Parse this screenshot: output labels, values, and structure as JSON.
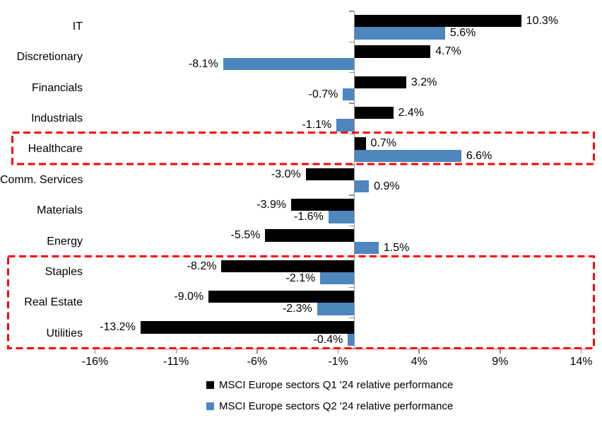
{
  "chart_data": {
    "type": "bar",
    "orientation": "horizontal",
    "title": "",
    "categories": [
      "IT",
      "Discretionary",
      "Financials",
      "Industrials",
      "Healthcare",
      "Comm. Services",
      "Materials",
      "Energy",
      "Staples",
      "Real Estate",
      "Utilities"
    ],
    "series": [
      {
        "name": "MSCI Europe sectors Q1 '24 relative performance",
        "color": "#000000",
        "values": [
          10.3,
          4.7,
          3.2,
          2.4,
          0.7,
          -3.0,
          -3.9,
          -5.5,
          -8.2,
          -9.0,
          -13.2
        ],
        "labels": [
          "10.3%",
          "4.7%",
          "3.2%",
          "2.4%",
          "0.7%",
          "-3.0%",
          "-3.9%",
          "-5.5%",
          "-8.2%",
          "-9.0%",
          "-13.2%"
        ]
      },
      {
        "name": "MSCI Europe sectors Q2 '24 relative performance",
        "color": "#4e86be",
        "values": [
          5.6,
          -8.1,
          -0.7,
          -1.1,
          6.6,
          0.9,
          -1.6,
          1.5,
          -2.1,
          -2.3,
          -0.4
        ],
        "labels": [
          "5.6%",
          "-8.1%",
          "-0.7%",
          "-1.1%",
          "6.6%",
          "0.9%",
          "-1.6%",
          "1.5%",
          "-2.1%",
          "-2.3%",
          "-0.4%"
        ]
      }
    ],
    "x_axis": {
      "range": [
        -16,
        14
      ],
      "ticks": [
        {
          "label": "-16%",
          "value": -16
        },
        {
          "label": "-11%",
          "value": -11
        },
        {
          "label": "-6%",
          "value": -6
        },
        {
          "label": "-1%",
          "value": -1
        },
        {
          "label": "4%",
          "value": 4
        },
        {
          "label": "9%",
          "value": 9
        },
        {
          "label": "14%",
          "value": 14
        }
      ]
    },
    "grid": false,
    "legend_position": "bottom",
    "highlights": [
      {
        "sectors": [
          "Healthcare"
        ],
        "style": "red-dashed-box"
      },
      {
        "sectors": [
          "Staples",
          "Real Estate",
          "Utilities"
        ],
        "style": "red-dashed-box"
      }
    ],
    "highlight_color": "#ff0000"
  }
}
